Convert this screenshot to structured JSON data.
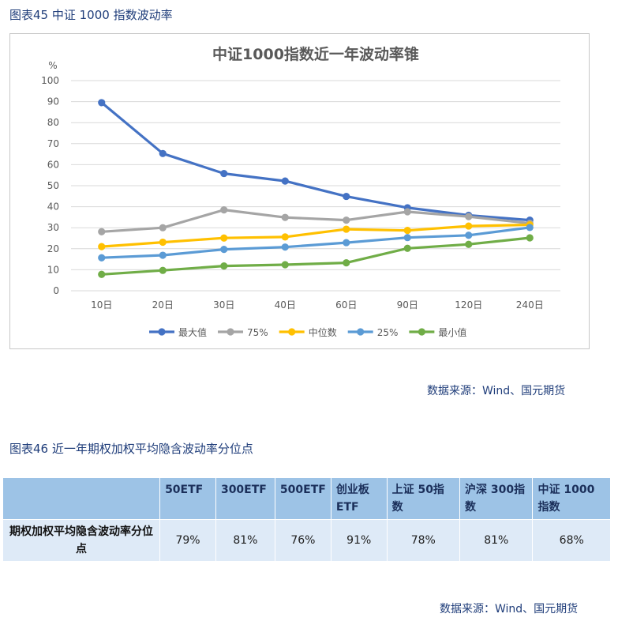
{
  "figure45": {
    "caption": "图表45  中证 1000 指数波动率",
    "source": "数据来源：Wind、国元期货"
  },
  "chart_data": {
    "type": "line",
    "title": "中证1000指数近一年波动率锥",
    "ylabel": "%",
    "ylim": [
      0,
      100
    ],
    "yticks": [
      0,
      10,
      20,
      30,
      40,
      50,
      60,
      70,
      80,
      90,
      100
    ],
    "categories": [
      "10日",
      "20日",
      "30日",
      "40日",
      "60日",
      "90日",
      "120日",
      "240日"
    ],
    "legend_position": "bottom",
    "grid": true,
    "series": [
      {
        "name": "最大值",
        "color": "#4472c4",
        "values": [
          89.5,
          65.3,
          55.8,
          52.2,
          44.9,
          39.5,
          35.9,
          33.6
        ]
      },
      {
        "name": "75%",
        "color": "#a5a5a5",
        "values": [
          28.1,
          30.0,
          38.5,
          34.9,
          33.6,
          37.6,
          35.3,
          32.1
        ]
      },
      {
        "name": "中位数",
        "color": "#ffc000",
        "values": [
          21.0,
          23.1,
          25.1,
          25.6,
          29.3,
          28.7,
          30.8,
          31.4
        ]
      },
      {
        "name": "25%",
        "color": "#5b9bd5",
        "values": [
          15.7,
          16.9,
          19.7,
          20.8,
          22.9,
          25.3,
          26.4,
          30.1
        ]
      },
      {
        "name": "最小值",
        "color": "#70ad47",
        "values": [
          7.8,
          9.7,
          11.8,
          12.4,
          13.3,
          20.2,
          22.1,
          25.2
        ]
      }
    ]
  },
  "figure46": {
    "caption": "图表46  近一年期权加权平均隐含波动率分位点",
    "source": "数据来源：Wind、国元期货",
    "table": {
      "headers": [
        "",
        "50ETF",
        "300ETF",
        "500ETF",
        "创业板ETF",
        "上证 50指数",
        "沪深 300指数",
        "中证 1000指数"
      ],
      "row_label": "期权加权平均隐含波动率分位点",
      "cells": [
        "79%",
        "81%",
        "76%",
        "91%",
        "78%",
        "81%",
        "68%"
      ]
    }
  }
}
